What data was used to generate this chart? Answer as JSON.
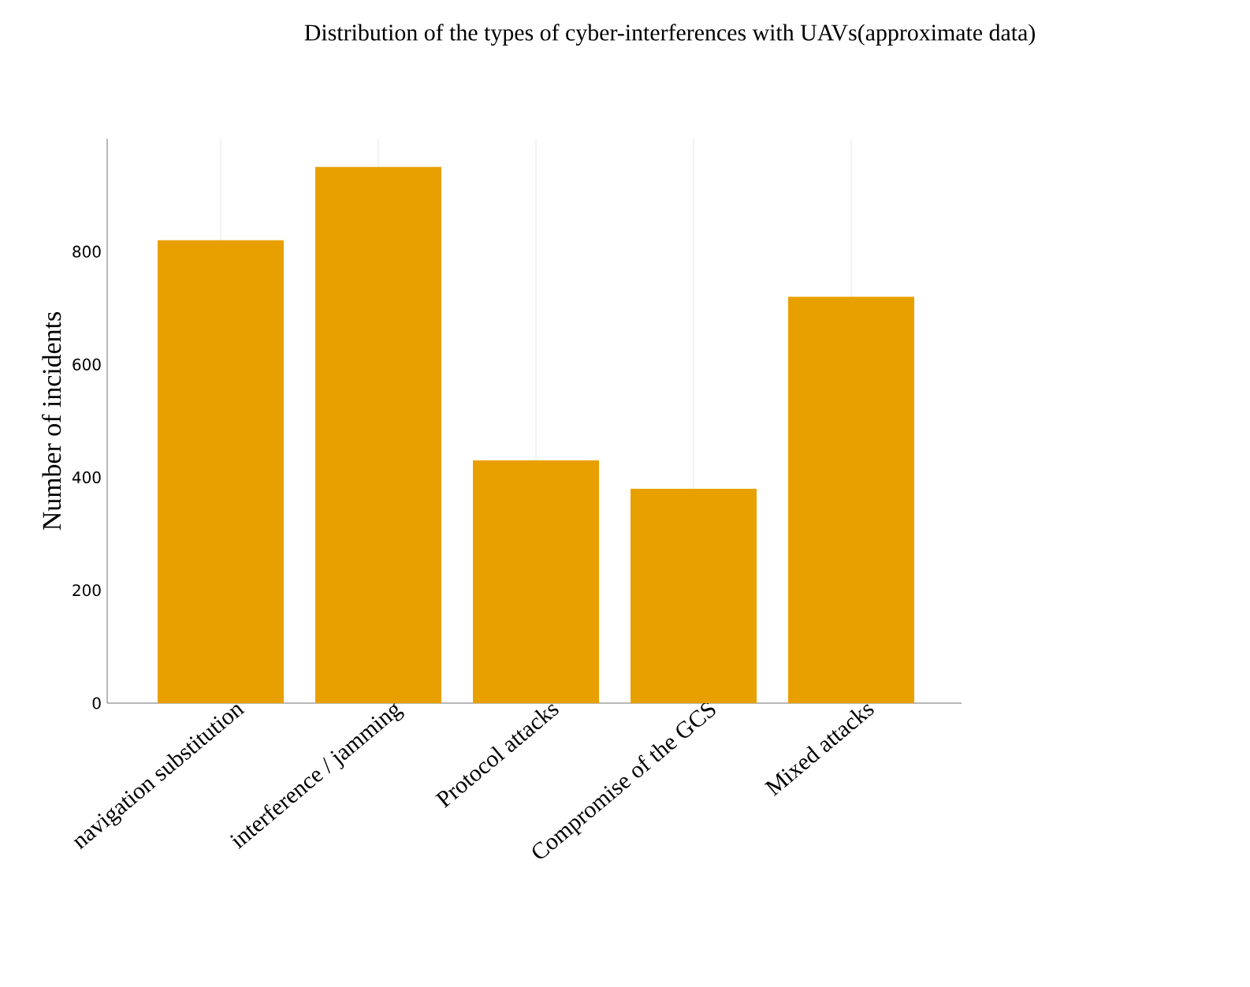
{
  "chart_data": {
    "type": "bar",
    "title": "Distribution of the types of cyber-interferences with UAVs(approximate data)",
    "ylabel": "Number of incidents",
    "categories": [
      "navigation substitution",
      "interference / jamming",
      "Protocol attacks",
      "Compromise of the GCS",
      "Mixed attacks"
    ],
    "values": [
      820,
      950,
      430,
      380,
      720
    ],
    "color": "#e8a000",
    "ylim": [
      0,
      1000
    ],
    "yticks": [
      0,
      200,
      400,
      600,
      800
    ],
    "grid": "x"
  }
}
